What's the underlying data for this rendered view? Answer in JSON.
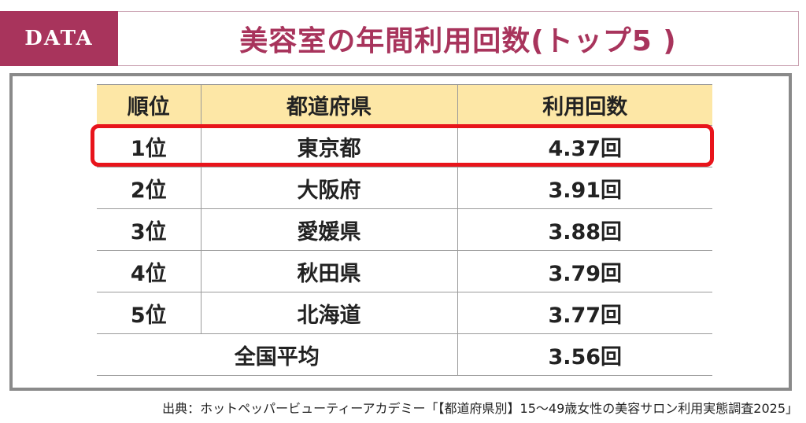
{
  "header": {
    "label": "DATA",
    "title": "美容室の年間利用回数(トップ5 )"
  },
  "table": {
    "columns": [
      "順位",
      "都道府県",
      "利用回数"
    ],
    "rows": [
      {
        "rank": "1位",
        "prefecture": "東京都",
        "count": "4.37回"
      },
      {
        "rank": "2位",
        "prefecture": "大阪府",
        "count": "3.91回"
      },
      {
        "rank": "3位",
        "prefecture": "愛媛県",
        "count": "3.88回"
      },
      {
        "rank": "4位",
        "prefecture": "秋田県",
        "count": "3.79回"
      },
      {
        "rank": "5位",
        "prefecture": "北海道",
        "count": "3.77回"
      }
    ],
    "average": {
      "label": "全国平均",
      "count": "3.56回"
    }
  },
  "colors": {
    "accent": "#a8345c",
    "header_fill": "#fde7a6",
    "highlight": "#e8141b",
    "frame": "#8a8a8a"
  },
  "source": "出典：ホットペッパービューティーアカデミー「【都道府県別】15～49歳女性の美容サロン利用実態調査2025」"
}
